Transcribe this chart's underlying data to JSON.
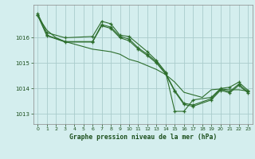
{
  "background_color": "#d4eeee",
  "plot_bg_color": "#d4eeee",
  "grid_color": "#aacccc",
  "line_color": "#2d6e2d",
  "marker_color": "#2d6e2d",
  "title": "Graphe pression niveau de la mer (hPa)",
  "title_color": "#1a4d1a",
  "tick_color": "#1a4d1a",
  "xlim": [
    -0.5,
    23.5
  ],
  "ylim": [
    1012.6,
    1017.3
  ],
  "yticks": [
    1013,
    1014,
    1015,
    1016
  ],
  "xticks": [
    0,
    1,
    2,
    3,
    4,
    5,
    6,
    7,
    8,
    9,
    10,
    11,
    12,
    13,
    14,
    15,
    16,
    17,
    18,
    19,
    20,
    21,
    22,
    23
  ],
  "series": [
    {
      "x": [
        0,
        1,
        2,
        3,
        4,
        5,
        6,
        7,
        8,
        9,
        10,
        11,
        12,
        13,
        14,
        15,
        16,
        17,
        18,
        19,
        20,
        21,
        22,
        23
      ],
      "y": [
        1016.85,
        1016.3,
        1016.0,
        1015.85,
        1015.75,
        1015.65,
        1015.55,
        1015.5,
        1015.45,
        1015.35,
        1015.15,
        1015.05,
        1014.9,
        1014.75,
        1014.55,
        1014.25,
        1013.85,
        1013.75,
        1013.65,
        1013.95,
        1013.98,
        1013.95,
        1013.95,
        1013.9
      ],
      "with_markers": false
    },
    {
      "x": [
        0,
        1,
        3,
        6,
        7,
        8,
        9,
        10,
        12,
        13,
        14,
        15,
        16,
        17,
        19,
        20,
        21,
        22,
        23
      ],
      "y": [
        1016.95,
        1016.2,
        1016.0,
        1016.05,
        1016.65,
        1016.55,
        1016.1,
        1016.05,
        1015.45,
        1015.1,
        1014.65,
        1013.1,
        1013.1,
        1013.55,
        1013.65,
        1014.0,
        1014.05,
        1014.25,
        1013.93
      ],
      "with_markers": true
    },
    {
      "x": [
        0,
        1,
        3,
        6,
        7,
        8,
        9,
        10,
        11,
        12,
        13,
        14,
        15,
        16,
        17,
        19,
        20,
        21,
        22,
        23
      ],
      "y": [
        1016.9,
        1016.1,
        1015.85,
        1015.85,
        1016.52,
        1016.42,
        1016.05,
        1015.95,
        1015.6,
        1015.35,
        1015.05,
        1014.6,
        1013.92,
        1013.42,
        1013.35,
        1013.6,
        1013.97,
        1013.88,
        1014.17,
        1013.87
      ],
      "with_markers": true
    },
    {
      "x": [
        0,
        1,
        3,
        6,
        7,
        8,
        9,
        10,
        11,
        12,
        13,
        14,
        15,
        16,
        17,
        19,
        20,
        21,
        22,
        23
      ],
      "y": [
        1016.88,
        1016.08,
        1015.83,
        1015.83,
        1016.47,
        1016.37,
        1016.0,
        1015.88,
        1015.55,
        1015.3,
        1015.0,
        1014.57,
        1013.88,
        1013.37,
        1013.3,
        1013.55,
        1013.93,
        1013.83,
        1014.12,
        1013.83
      ],
      "with_markers": true
    }
  ]
}
